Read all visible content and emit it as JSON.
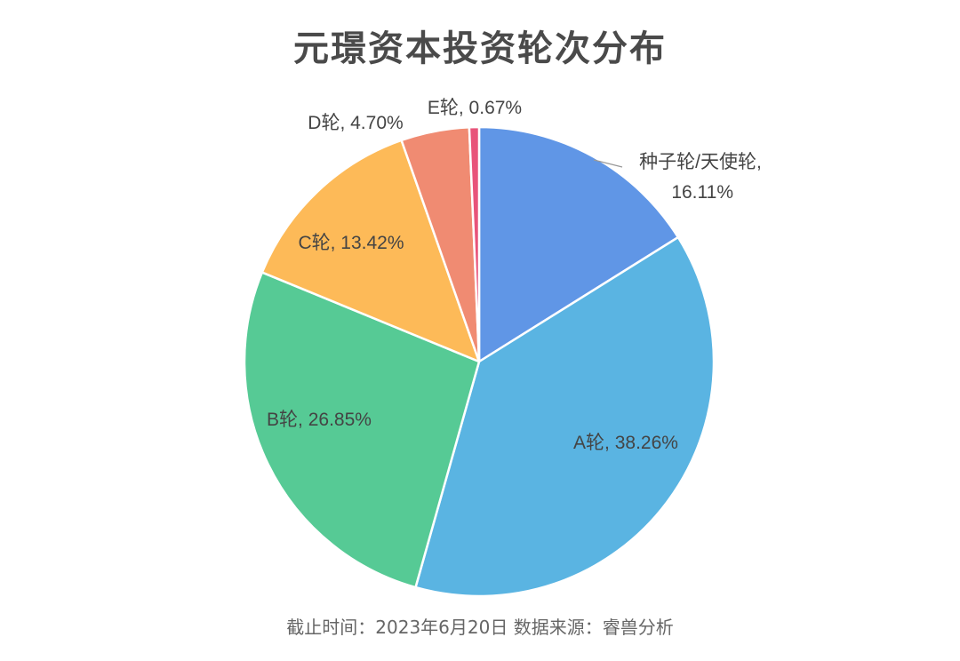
{
  "title": "元璟资本投资轮次分布",
  "footer": "截止时间：2023年6月20日  数据来源：睿兽分析",
  "chart_data": {
    "type": "pie",
    "title": "元璟资本投资轮次分布",
    "slices": [
      {
        "label": "种子轮/天使轮",
        "value": 16.11,
        "display": "16.11%",
        "color": "#6096e6"
      },
      {
        "label": "A轮",
        "value": 38.26,
        "display": "38.26%",
        "color": "#5ab4e2"
      },
      {
        "label": "B轮",
        "value": 26.85,
        "display": "26.85%",
        "color": "#56ca95"
      },
      {
        "label": "C轮",
        "value": 13.42,
        "display": "13.42%",
        "color": "#fdba58"
      },
      {
        "label": "D轮",
        "value": 4.7,
        "display": "4.70%",
        "color": "#f08b72"
      },
      {
        "label": "E轮",
        "value": 0.67,
        "display": "0.67%",
        "color": "#e8547a"
      }
    ],
    "start": "12 o'clock",
    "direction": "clockwise",
    "legend": "none"
  }
}
